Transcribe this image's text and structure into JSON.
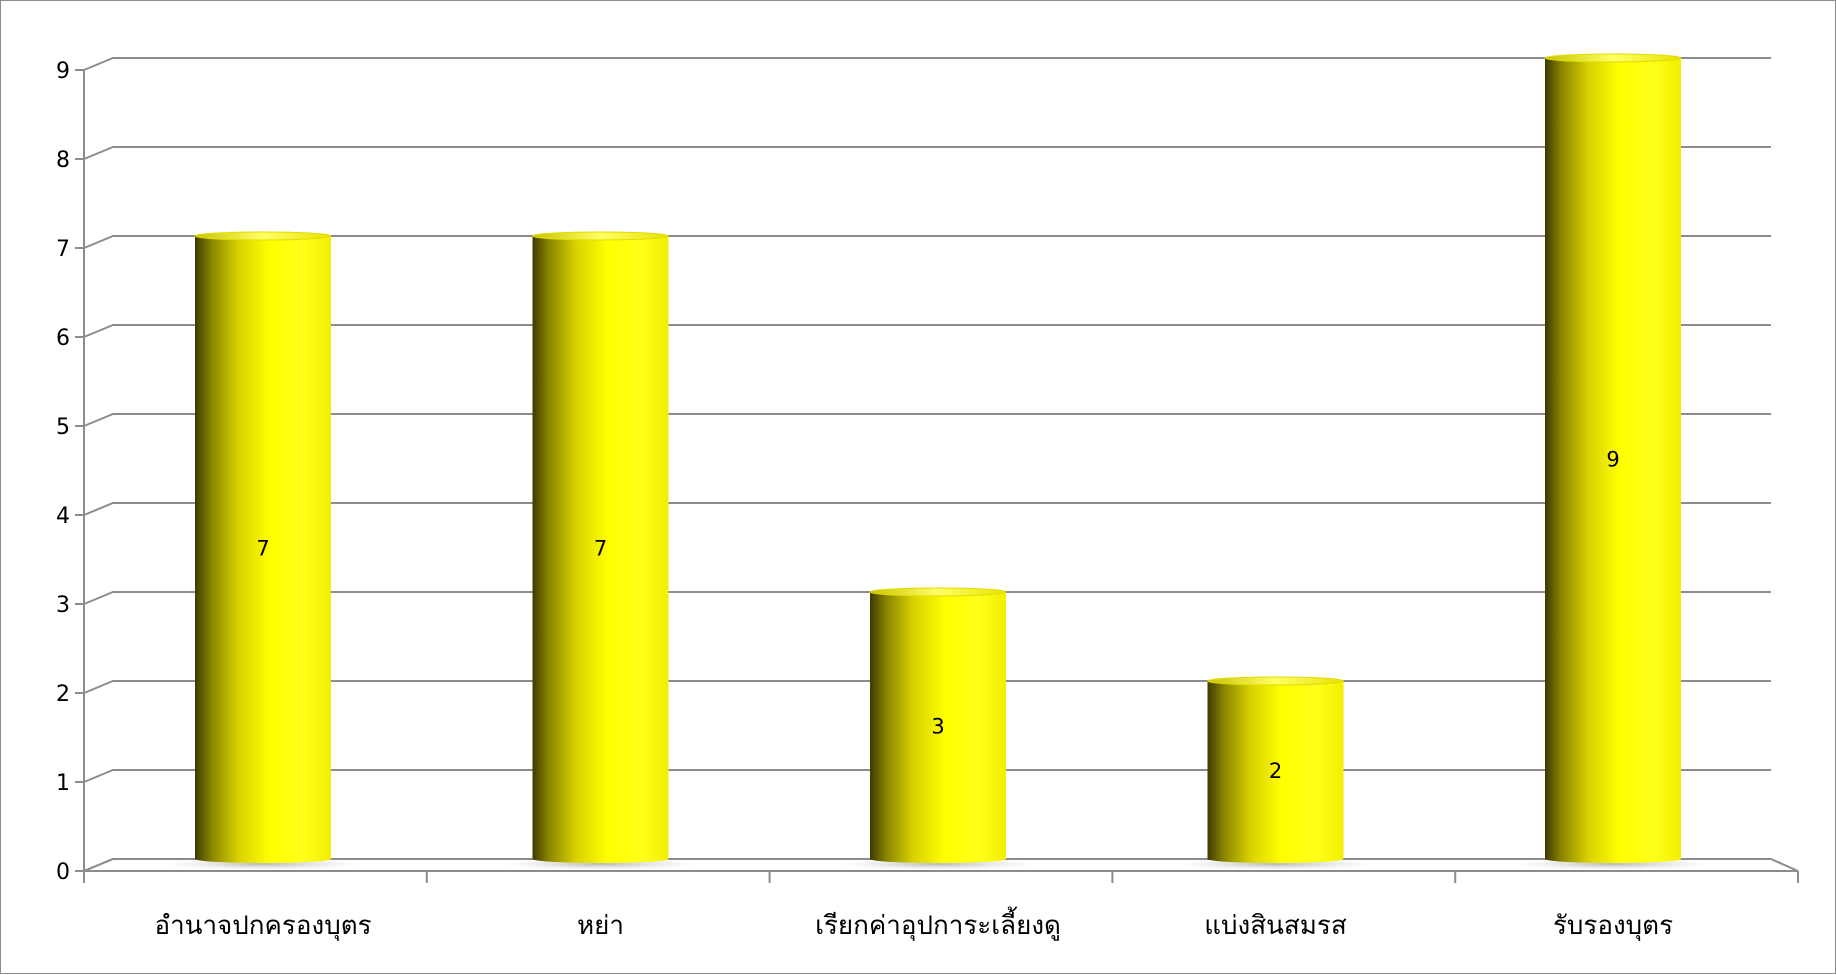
{
  "chart_data": {
    "type": "bar",
    "categories": [
      "อำนาจปกครองบุตร",
      "หย่า",
      "เรียกค่าอุปการะเลี้ยงดู",
      "แบ่งสินสมรส",
      "รับรองบุตร"
    ],
    "values": [
      7,
      7,
      3,
      2,
      9
    ],
    "data_labels": [
      "7",
      "7",
      "3",
      "2",
      "9"
    ],
    "ylim": [
      0,
      9
    ],
    "yticks": [
      "0",
      "1",
      "2",
      "3",
      "4",
      "5",
      "6",
      "7",
      "8",
      "9"
    ],
    "grid": true,
    "legend": "none",
    "bar_color": "#ffff00",
    "bar_shade_color": "#4d4a00",
    "grid_color": "#8c8c8c"
  }
}
